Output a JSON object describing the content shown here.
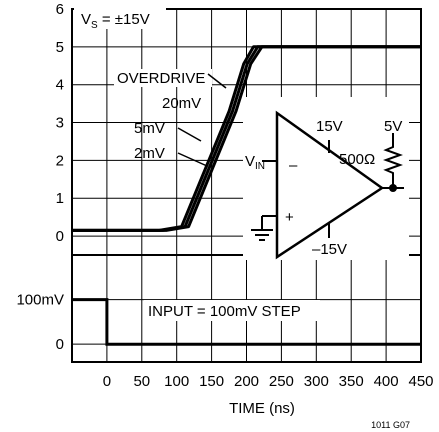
{
  "chart_data": {
    "type": "line",
    "title": "",
    "xlabel": "TIME (ns)",
    "x_ticks": [
      "0",
      "50",
      "100",
      "150",
      "200",
      "250",
      "300",
      "350",
      "400",
      "450"
    ],
    "xlim": [
      -50,
      450
    ],
    "upper_panel": {
      "y_ticks": [
        "0",
        "1",
        "2",
        "3",
        "4",
        "5",
        "6"
      ],
      "ylim": [
        -0.5,
        6
      ],
      "supply_label": {
        "pre": "V",
        "sub": "S",
        "post": " = ±15V"
      },
      "overdrive_label": "OVERDRIVE",
      "series": [
        {
          "name": "20mV",
          "x": [
            -50,
            75,
            107,
            175,
            196,
            210,
            450
          ],
          "y": [
            0.15,
            0.15,
            0.25,
            3.3,
            4.55,
            5.0,
            5.0
          ]
        },
        {
          "name": "5mV",
          "x": [
            -50,
            80,
            112,
            180,
            201,
            216,
            450
          ],
          "y": [
            0.15,
            0.15,
            0.25,
            3.3,
            4.55,
            5.0,
            5.0
          ]
        },
        {
          "name": "2mV",
          "x": [
            -50,
            85,
            117,
            185,
            206,
            222,
            450
          ],
          "y": [
            0.15,
            0.15,
            0.25,
            3.3,
            4.55,
            5.0,
            5.0
          ]
        }
      ]
    },
    "lower_panel": {
      "y_ticks": [
        "0",
        "100mV"
      ],
      "ylim": [
        -40,
        200
      ],
      "input_label": "INPUT = 100mV STEP",
      "series": [
        {
          "x": [
            -50,
            0,
            0,
            450
          ],
          "y": [
            100,
            100,
            0,
            0
          ]
        }
      ]
    },
    "grid": true,
    "schematic": {
      "vin": {
        "pre": "V",
        "sub": "IN"
      },
      "v_pos": "15V",
      "v_neg": "–15V",
      "v_pullup": "5V",
      "r_pullup": "500Ω",
      "minus": "–",
      "plus": "+"
    },
    "figure_id": "1011 G07"
  }
}
